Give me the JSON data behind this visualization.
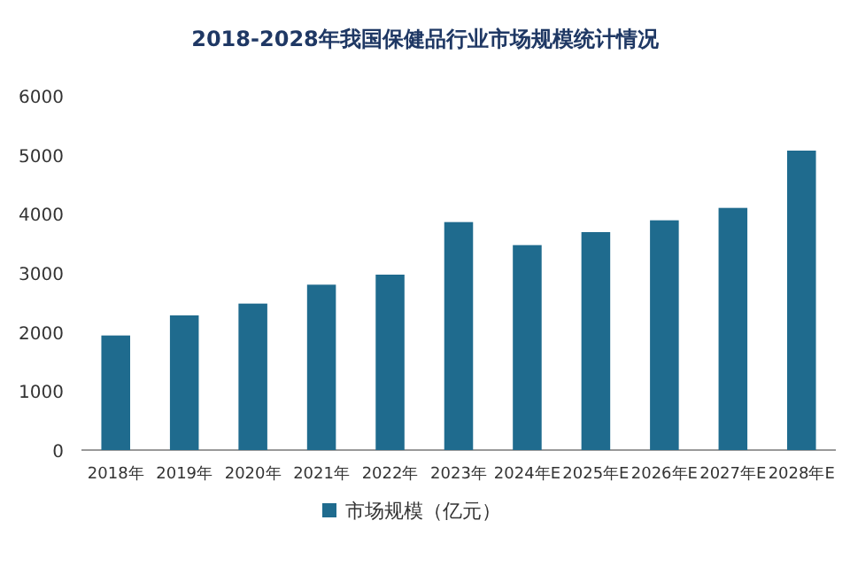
{
  "chart_data": {
    "type": "bar",
    "title": "2018-2028年我国保健品行业市场规模统计情况",
    "categories": [
      "2018年",
      "2019年",
      "2020年",
      "2021年",
      "2022年",
      "2023年",
      "2024年E",
      "2025年E",
      "2026年E",
      "2027年E",
      "2028年E"
    ],
    "series": [
      {
        "name": "市场规模（亿元）",
        "color": "#1f6b8e",
        "values": [
          1940,
          2280,
          2480,
          2800,
          2970,
          3860,
          3470,
          3690,
          3890,
          4100,
          5070
        ]
      }
    ],
    "ylim": [
      0,
      6000
    ],
    "yticks": [
      0,
      1000,
      2000,
      3000,
      4000,
      5000,
      6000
    ],
    "grid": false,
    "legend": "bottom"
  }
}
